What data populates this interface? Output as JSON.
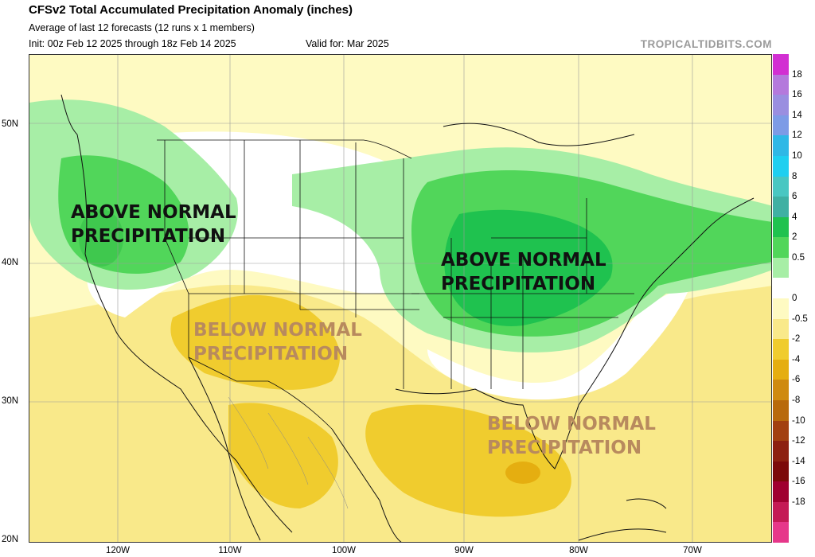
{
  "header": {
    "title": "CFSv2 Total Accumulated Precipitation Anomaly (inches)",
    "subtitle": "Average of last 12 forecasts (12 runs x 1 members)",
    "init": "Init: 00z Feb 12 2025 through 18z Feb 14 2025",
    "valid": "Valid for: Mar 2025",
    "credit": "TROPICALTIDBITS.COM"
  },
  "axes": {
    "lat_labels": [
      "50N",
      "40N",
      "30N",
      "20N"
    ],
    "lon_labels": [
      "120W",
      "110W",
      "100W",
      "90W",
      "80W",
      "70W"
    ]
  },
  "colorbar": {
    "labels": [
      "18",
      "16",
      "14",
      "12",
      "10",
      "8",
      "6",
      "4",
      "2",
      "0.5",
      "0",
      "-0.5",
      "-2",
      "-4",
      "-6",
      "-8",
      "-10",
      "-12",
      "-14",
      "-16",
      "-18"
    ],
    "colors": [
      "#d22fd2",
      "#b479dc",
      "#9a8ee0",
      "#7d9be6",
      "#2fb8e6",
      "#1fcff0",
      "#49c7c2",
      "#3fb0a3",
      "#1fc24f",
      "#51d65a",
      "#a7eea6",
      "#ffffff",
      "#fefac2",
      "#f9e98a",
      "#f0cc2e",
      "#e5ae10",
      "#cf8a0f",
      "#b86a0c",
      "#a24010",
      "#8d2010",
      "#7c0a0a",
      "#a00030",
      "#c41a55",
      "#e6378a"
    ]
  },
  "annotations": {
    "west_above": [
      "ABOVE NORMAL",
      "PRECIPITATION"
    ],
    "east_above": [
      "ABOVE NORMAL",
      "PRECIPITATION"
    ],
    "southwest_below": [
      "BELOW NORMAL",
      "PRECIPITATION"
    ],
    "southeast_below": [
      "BELOW NORMAL",
      "PRECIPITATION"
    ]
  },
  "map_colors": {
    "light_yellow": "#fefac2",
    "yellow": "#f9e98a",
    "gold": "#f0cc2e",
    "orange": "#e5ae10",
    "light_green": "#a7eea6",
    "green": "#51d65a",
    "dark_green": "#1fc24f"
  }
}
